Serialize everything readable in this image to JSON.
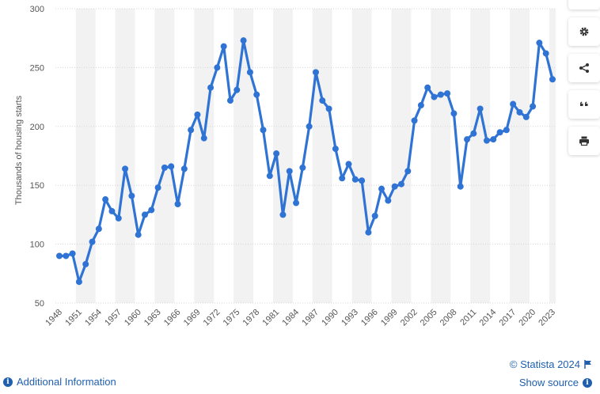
{
  "chart_data": {
    "type": "line",
    "ylabel": "Thousands of housing starts",
    "xlabel": "",
    "ylim": [
      50,
      300
    ],
    "yticks": [
      50,
      100,
      150,
      200,
      250,
      300
    ],
    "xtick_labels": [
      "1948",
      "1951",
      "1954",
      "1957",
      "1960",
      "1963",
      "1966",
      "1969",
      "1972",
      "1975",
      "1978",
      "1981",
      "1984",
      "1987",
      "1990",
      "1993",
      "1996",
      "1999",
      "2002",
      "2005",
      "2008",
      "2011",
      "2014",
      "2017",
      "2020",
      "2023"
    ],
    "x": [
      1948,
      1949,
      1950,
      1951,
      1952,
      1953,
      1954,
      1955,
      1956,
      1957,
      1958,
      1959,
      1960,
      1961,
      1962,
      1963,
      1964,
      1965,
      1966,
      1967,
      1968,
      1969,
      1970,
      1971,
      1972,
      1973,
      1974,
      1975,
      1976,
      1977,
      1978,
      1979,
      1980,
      1981,
      1982,
      1983,
      1984,
      1985,
      1986,
      1987,
      1988,
      1989,
      1990,
      1991,
      1992,
      1993,
      1994,
      1995,
      1996,
      1997,
      1998,
      1999,
      2000,
      2001,
      2002,
      2003,
      2004,
      2005,
      2006,
      2007,
      2008,
      2009,
      2010,
      2011,
      2012,
      2013,
      2014,
      2015,
      2016,
      2017,
      2018,
      2019,
      2020,
      2021,
      2022,
      2023
    ],
    "values": [
      90,
      90,
      92,
      68,
      83,
      102,
      113,
      138,
      128,
      122,
      164,
      141,
      108,
      125,
      129,
      148,
      165,
      166,
      134,
      164,
      197,
      210,
      190,
      233,
      250,
      268,
      222,
      231,
      273,
      246,
      227,
      197,
      158,
      177,
      125,
      162,
      135,
      165,
      200,
      246,
      222,
      215,
      181,
      156,
      168,
      155,
      154,
      110,
      124,
      147,
      137,
      149,
      151,
      162,
      205,
      218,
      233,
      225,
      227,
      228,
      211,
      149,
      189,
      194,
      215,
      188,
      189,
      195,
      197,
      219,
      212,
      208,
      217,
      271,
      262,
      240
    ],
    "grid": true,
    "legend": "none",
    "colors": {
      "line": "#2f73d4",
      "band": "#f2f2f2",
      "grid": "#d5d5d5",
      "axis_text": "#555555"
    }
  },
  "toolbar": {
    "icons": [
      "bell-icon",
      "gear-icon",
      "share-icon",
      "quote-icon",
      "print-icon"
    ]
  },
  "footer": {
    "additional_info": "Additional Information",
    "copyright": "© Statista 2024",
    "show_source": "Show source",
    "info_icon": "info-icon",
    "flag_icon": "flag-icon"
  }
}
